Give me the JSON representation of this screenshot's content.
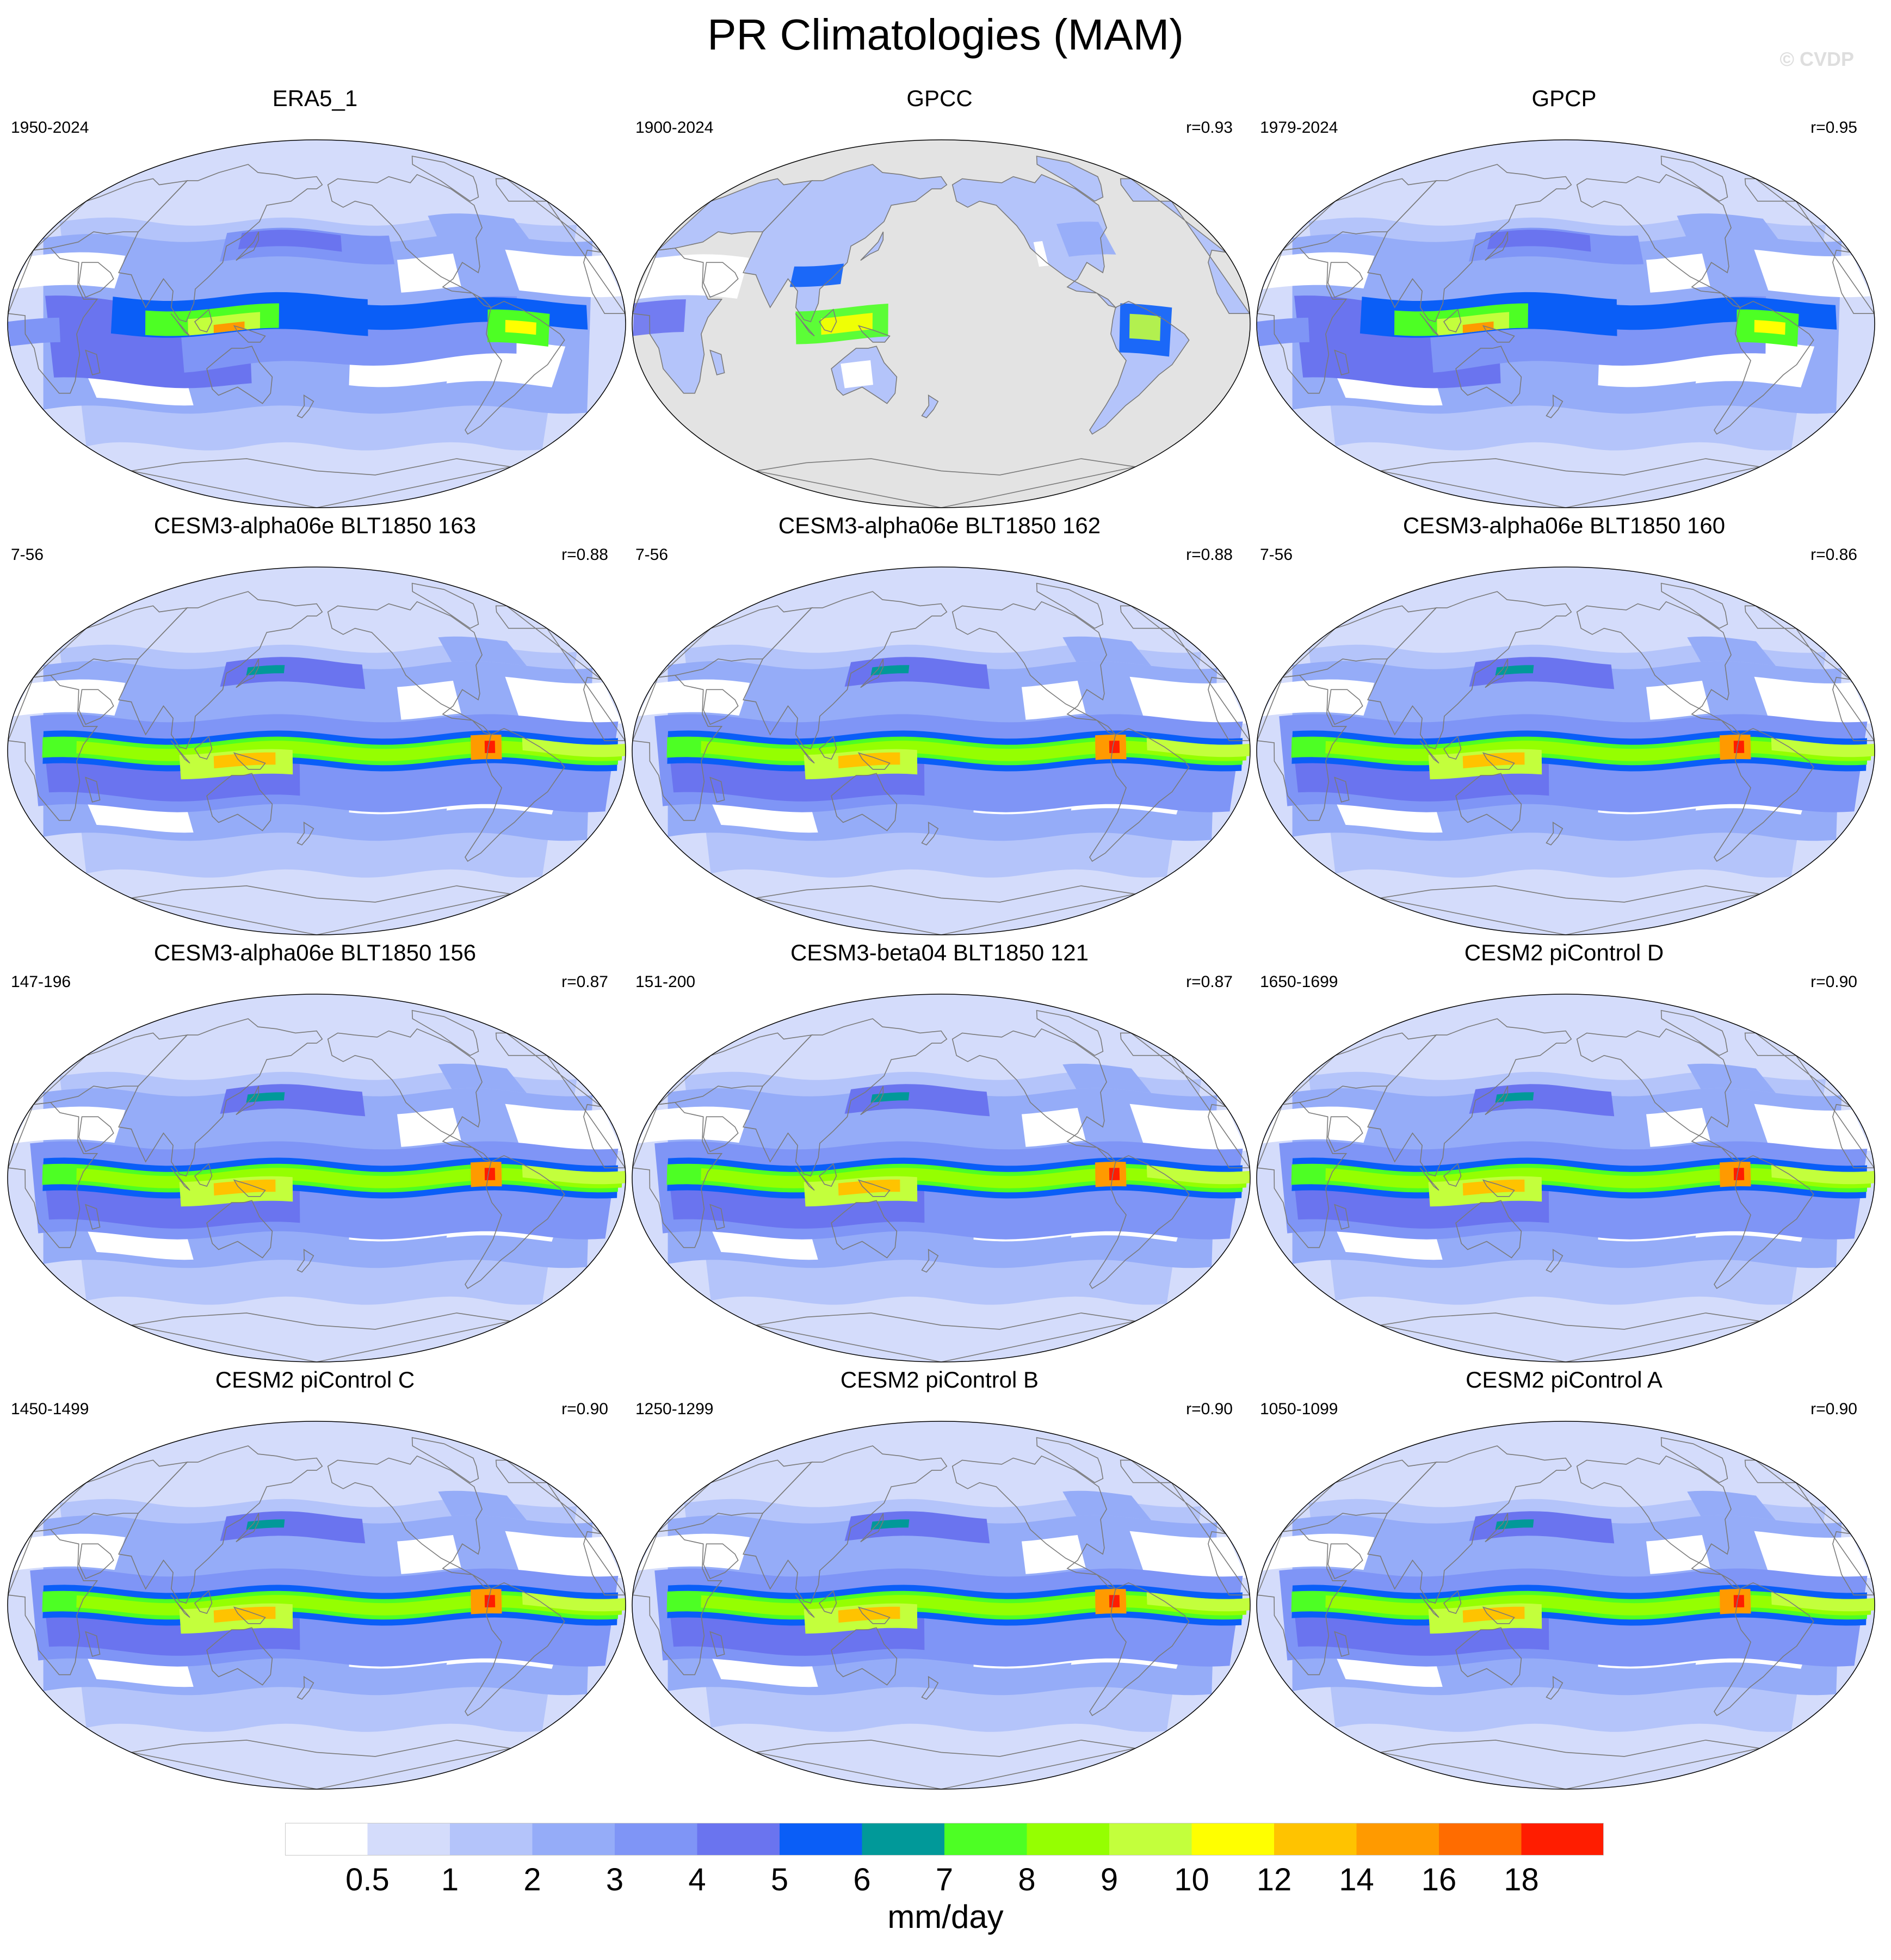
{
  "title": "PR Climatologies (MAM)",
  "watermark": "© CVDP",
  "panels": [
    {
      "title": "ERA5_1",
      "period": "1950-2024",
      "r": "",
      "style": "obs"
    },
    {
      "title": "GPCC",
      "period": "1900-2024",
      "r": "r=0.93",
      "style": "land"
    },
    {
      "title": "GPCP",
      "period": "1979-2024",
      "r": "r=0.95",
      "style": "obs"
    },
    {
      "title": "CESM3-alpha06e BLT1850 163",
      "period": "7-56",
      "r": "r=0.88",
      "style": "model"
    },
    {
      "title": "CESM3-alpha06e BLT1850 162",
      "period": "7-56",
      "r": "r=0.88",
      "style": "model"
    },
    {
      "title": "CESM3-alpha06e BLT1850 160",
      "period": "7-56",
      "r": "r=0.86",
      "style": "model"
    },
    {
      "title": "CESM3-alpha06e BLT1850 156",
      "period": "147-196",
      "r": "r=0.87",
      "style": "model"
    },
    {
      "title": "CESM3-beta04 BLT1850 121",
      "period": "151-200",
      "r": "r=0.87",
      "style": "model"
    },
    {
      "title": "CESM2 piControl D",
      "period": "1650-1699",
      "r": "r=0.90",
      "style": "model"
    },
    {
      "title": "CESM2 piControl C",
      "period": "1450-1499",
      "r": "r=0.90",
      "style": "model"
    },
    {
      "title": "CESM2 piControl B",
      "period": "1250-1299",
      "r": "r=0.90",
      "style": "model"
    },
    {
      "title": "CESM2 piControl A",
      "period": "1050-1099",
      "r": "r=0.90",
      "style": "model"
    }
  ],
  "colorbar": {
    "levels": [
      "0.5",
      "1",
      "2",
      "3",
      "4",
      "5",
      "6",
      "7",
      "8",
      "9",
      "10",
      "12",
      "14",
      "16",
      "18"
    ],
    "colors": [
      "#ffffff",
      "#d4dcfb",
      "#b4c4fa",
      "#95acf8",
      "#7f95f6",
      "#6a74ef",
      "#0a5ef7",
      "#019999",
      "#4dff24",
      "#95ff01",
      "#c3ff3c",
      "#ffff00",
      "#ffc300",
      "#ff9a00",
      "#ff6c00",
      "#ff1d00"
    ],
    "units": "mm/day"
  },
  "land_mask_color": "#e3e3e3",
  "coastline_color": "#7a7a7a"
}
